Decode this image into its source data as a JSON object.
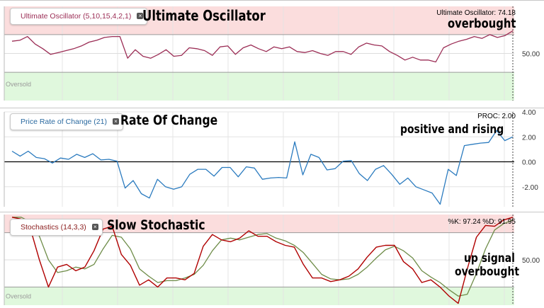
{
  "colors": {
    "uo_line": "#9b2d55",
    "proc_line": "#2b7bbf",
    "k_line": "#b00000",
    "d_line": "#6e8c48",
    "overbought_zone": "#fbdddd",
    "oversold_zone": "#e0f8dd",
    "uo_tag_text": "#9b2d55",
    "proc_tag_text": "#2b6aa0",
    "stoch_tag_text": "#8a1c1c"
  },
  "panels": {
    "uo": {
      "tag": "Ultimate Oscillator (5,10,15,4,2,1)",
      "title": "Ultimate Oscillator",
      "readout": "Ultimate Oscillator: 74.18",
      "annotation": "overbought",
      "oversold_label": "Oversold",
      "tick_label": "50.00"
    },
    "proc": {
      "tag": "Price Rate of Change (21)",
      "title": "Rate Of Change",
      "readout": "PROC: 2.00",
      "annotation": "positive and rising",
      "tick_labels": [
        "4.00",
        "2.00",
        "0.00",
        "-2.00"
      ]
    },
    "stoch": {
      "tag": "Stochastics (14,3,3)",
      "title": "Slow Stochastic",
      "readout": "%K: 97.24 %D: 91.95",
      "annotation_1": "up signal",
      "annotation_2": "overbought",
      "oversold_label": "Oversold",
      "tick_label": "50.00"
    }
  },
  "chart_data": [
    {
      "type": "line",
      "panel": "uo",
      "ylim": [
        0,
        100
      ],
      "overbought": 70,
      "oversold": 30,
      "series": [
        {
          "values": [
            63,
            64,
            68,
            60,
            55,
            49,
            51,
            53,
            55,
            58,
            62,
            64,
            67,
            68,
            68,
            45,
            54,
            47,
            45,
            49,
            54,
            47,
            48,
            56,
            55,
            53,
            48,
            57,
            58,
            49,
            56,
            59,
            55,
            52,
            57,
            55,
            57,
            52,
            51,
            53,
            50,
            48,
            52,
            52,
            49,
            57,
            61,
            59,
            58,
            52,
            48,
            43,
            46,
            43,
            43,
            41,
            56,
            60,
            63,
            65,
            68,
            66,
            70,
            67,
            69,
            74
          ]
        }
      ]
    },
    {
      "type": "line",
      "panel": "proc",
      "ylim": [
        -3.6,
        4.0
      ],
      "series": [
        {
          "values": [
            0.85,
            0.45,
            0.85,
            0.35,
            0.25,
            -0.1,
            0.3,
            0.2,
            0.6,
            0.35,
            0.65,
            0.15,
            0.2,
            0.05,
            -2.1,
            -1.5,
            -2.55,
            -2.9,
            -1.4,
            -2.0,
            -2.2,
            -2.0,
            -1.0,
            -0.6,
            -0.6,
            -1.15,
            -0.45,
            -0.45,
            -1.2,
            -0.4,
            -0.5,
            -1.4,
            -1.3,
            -1.25,
            -1.3,
            1.6,
            -1.05,
            0.6,
            0.35,
            -0.65,
            -0.55,
            0.05,
            0.1,
            -0.95,
            -1.5,
            -0.6,
            -0.3,
            -1.0,
            -1.8,
            -1.3,
            -2.0,
            -2.25,
            -2.5,
            -3.4,
            -0.6,
            -1.1,
            1.3,
            1.4,
            1.5,
            1.55,
            2.5,
            1.7,
            2.0
          ]
        }
      ]
    },
    {
      "type": "line",
      "panel": "stoch",
      "ylim": [
        0,
        100
      ],
      "overbought": 80,
      "oversold": 20,
      "series": [
        {
          "name": "%K",
          "values": [
            97,
            95,
            85,
            50,
            20,
            42,
            45,
            38,
            42,
            60,
            84,
            87,
            56,
            44,
            22,
            28,
            20,
            30,
            30,
            28,
            35,
            65,
            78,
            72,
            70,
            74,
            82,
            76,
            76,
            70,
            66,
            64,
            45,
            30,
            30,
            26,
            28,
            32,
            40,
            53,
            64,
            66,
            66,
            48,
            40,
            25,
            28,
            20,
            10,
            2,
            40,
            75,
            88,
            87,
            94,
            97
          ]
        },
        {
          "name": "%D",
          "values": [
            97,
            97,
            92,
            76,
            50,
            36,
            38,
            42,
            40,
            45,
            62,
            77,
            75,
            62,
            40,
            32,
            25,
            27,
            27,
            30,
            34,
            44,
            60,
            72,
            74,
            72,
            75,
            78,
            79,
            74,
            71,
            66,
            58,
            46,
            34,
            29,
            28,
            29,
            34,
            42,
            52,
            61,
            65,
            60,
            52,
            38,
            31,
            25,
            17,
            10,
            12,
            35,
            62,
            83,
            90,
            94
          ]
        }
      ]
    }
  ]
}
